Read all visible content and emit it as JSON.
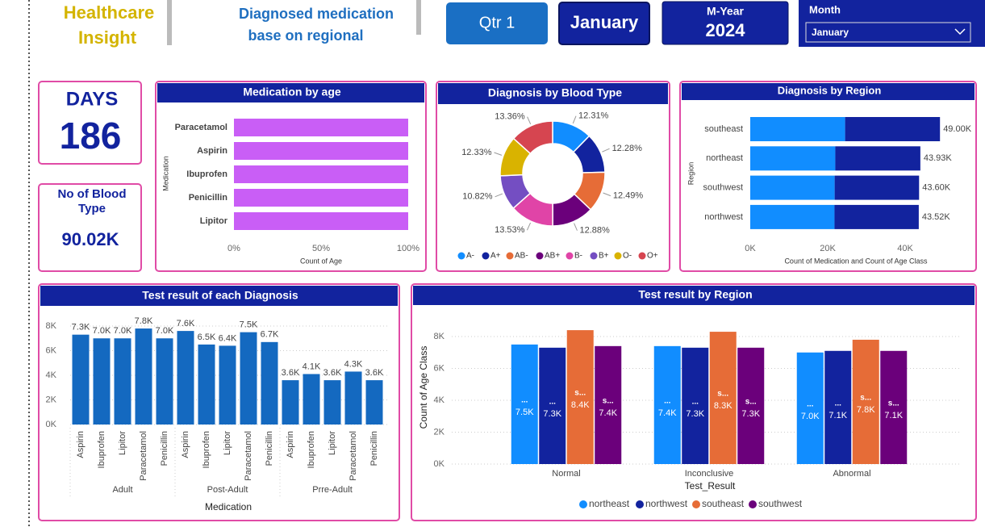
{
  "header": {
    "title": [
      "Healthcare",
      "Insight"
    ],
    "subtitle": [
      "Diagnosed medication",
      "base on regional"
    ],
    "quarter": "Qtr 1",
    "month_button": "January",
    "myear_label": "M-Year",
    "myear_value": "2024",
    "month_slicer": {
      "label": "Month",
      "selected": "January"
    }
  },
  "kpis": {
    "days": {
      "label": "DAYS",
      "value": 186
    },
    "blood_type": {
      "label": [
        "No of Blood",
        "Type"
      ],
      "value": "90.02K"
    }
  },
  "chart_data": [
    {
      "type": "hbar",
      "title": "Medication by age",
      "categories": [
        "Paracetamol",
        "Aspirin",
        "Ibuprofen",
        "Penicillin",
        "Lipitor"
      ],
      "values": [
        100,
        100,
        100,
        100,
        100
      ],
      "color": "#c95ef6",
      "xlim": [
        0,
        100
      ],
      "xticks": [
        {
          "value": 0,
          "label": "0%"
        },
        {
          "value": 50,
          "label": "50%"
        },
        {
          "value": 100,
          "label": "100%"
        }
      ],
      "x_label": "Count of Age",
      "y_label": "Medication"
    },
    {
      "type": "donut",
      "title": "Diagnosis by Blood Type",
      "categories": [
        "A-",
        "A+",
        "AB-",
        "AB+",
        "B-",
        "B+",
        "O-",
        "O+"
      ],
      "values": [
        12.31,
        12.28,
        12.49,
        12.88,
        13.53,
        10.82,
        12.33,
        13.36
      ],
      "value_labels": [
        "12.31%",
        "12.28%",
        "12.49%",
        "12.88%",
        "13.53%",
        "10.82%",
        "12.33%",
        "13.36%"
      ],
      "colors": [
        "#118dff",
        "#12239e",
        "#e66c37",
        "#6b007b",
        "#e044a7",
        "#744ec2",
        "#d9b300",
        "#d64550"
      ]
    },
    {
      "type": "stacked_hbar",
      "title": "Diagnosis by Region",
      "categories": [
        "southeast",
        "northeast",
        "southwest",
        "northwest"
      ],
      "series": [
        {
          "color": "#118dff",
          "values": [
            24500,
            21965,
            21800,
            21760
          ]
        },
        {
          "color": "#12239e",
          "values": [
            24500,
            21965,
            21800,
            21760
          ]
        }
      ],
      "totals": [
        49000,
        43930,
        43600,
        43520
      ],
      "total_labels": [
        "49.00K",
        "43.93K",
        "43.60K",
        "43.52K"
      ],
      "xlim": [
        0,
        50000
      ],
      "xticks": [
        {
          "value": 0,
          "label": "0K"
        },
        {
          "value": 20000,
          "label": "20K"
        },
        {
          "value": 40000,
          "label": "40K"
        }
      ],
      "x_label": "Count of Medication and Count of Age Class",
      "y_label": "Region"
    },
    {
      "type": "grouped_category_bar",
      "title": "Test result of each Diagnosis",
      "color": "#1469c0",
      "groups": [
        {
          "name": "Adult",
          "categories": [
            "Aspirin",
            "Ibuprofen",
            "Lipitor",
            "Paracetamol",
            "Penicillin"
          ],
          "values": [
            7300,
            7000,
            7000,
            7800,
            7000
          ],
          "value_labels": [
            "7.3K",
            "7.0K",
            "7.0K",
            "7.8K",
            "7.0K"
          ]
        },
        {
          "name": "Post-Adult",
          "categories": [
            "Aspirin",
            "Ibuprofen",
            "Lipitor",
            "Paracetamol",
            "Penicillin"
          ],
          "values": [
            7600,
            6500,
            6400,
            7500,
            6700
          ],
          "value_labels": [
            "7.6K",
            "6.5K",
            "6.4K",
            "7.5K",
            "6.7K"
          ]
        },
        {
          "name": "Prre-Adult",
          "categories": [
            "Aspirin",
            "Ibuprofen",
            "Lipitor",
            "Paracetamol",
            "Penicillin"
          ],
          "values": [
            3600,
            4100,
            3600,
            4300,
            3600
          ],
          "value_labels": [
            "3.6K",
            "4.1K",
            "3.6K",
            "4.3K",
            "3.6K"
          ]
        }
      ],
      "ylim": [
        0,
        8500
      ],
      "yticks": [
        {
          "value": 0,
          "label": "0K"
        },
        {
          "value": 2000,
          "label": "2K"
        },
        {
          "value": 4000,
          "label": "4K"
        },
        {
          "value": 6000,
          "label": "6K"
        },
        {
          "value": 8000,
          "label": "8K"
        }
      ],
      "grid": true,
      "x_label": "Medication"
    },
    {
      "type": "grouped_bar",
      "title": "Test result by Region",
      "categories": [
        "Normal",
        "Inconclusive",
        "Abnormal"
      ],
      "series": [
        {
          "name": "northeast",
          "short_name": "...",
          "color": "#118dff",
          "values": [
            7500,
            7400,
            7000
          ],
          "value_labels": [
            "7.5K",
            "7.4K",
            "7.0K"
          ]
        },
        {
          "name": "northwest",
          "short_name": "...",
          "color": "#12239e",
          "values": [
            7300,
            7300,
            7100
          ],
          "value_labels": [
            "7.3K",
            "7.3K",
            "7.1K"
          ]
        },
        {
          "name": "southeast",
          "short_name": "s...",
          "color": "#e66c37",
          "values": [
            8400,
            8300,
            7800
          ],
          "value_labels": [
            "8.4K",
            "8.3K",
            "7.8K"
          ]
        },
        {
          "name": "southwest",
          "short_name": "s...",
          "color": "#6b007b",
          "values": [
            7400,
            7300,
            7100
          ],
          "value_labels": [
            "7.4K",
            "7.3K",
            "7.1K"
          ]
        }
      ],
      "ylim": [
        0,
        8600
      ],
      "yticks": [
        {
          "value": 0,
          "label": "0K"
        },
        {
          "value": 2000,
          "label": "2K"
        },
        {
          "value": 4000,
          "label": "4K"
        },
        {
          "value": 6000,
          "label": "6K"
        },
        {
          "value": 8000,
          "label": "8K"
        }
      ],
      "grid": true,
      "x_label": "Test_Result",
      "y_label": "Count of Age Class",
      "legend": "bottom"
    }
  ]
}
